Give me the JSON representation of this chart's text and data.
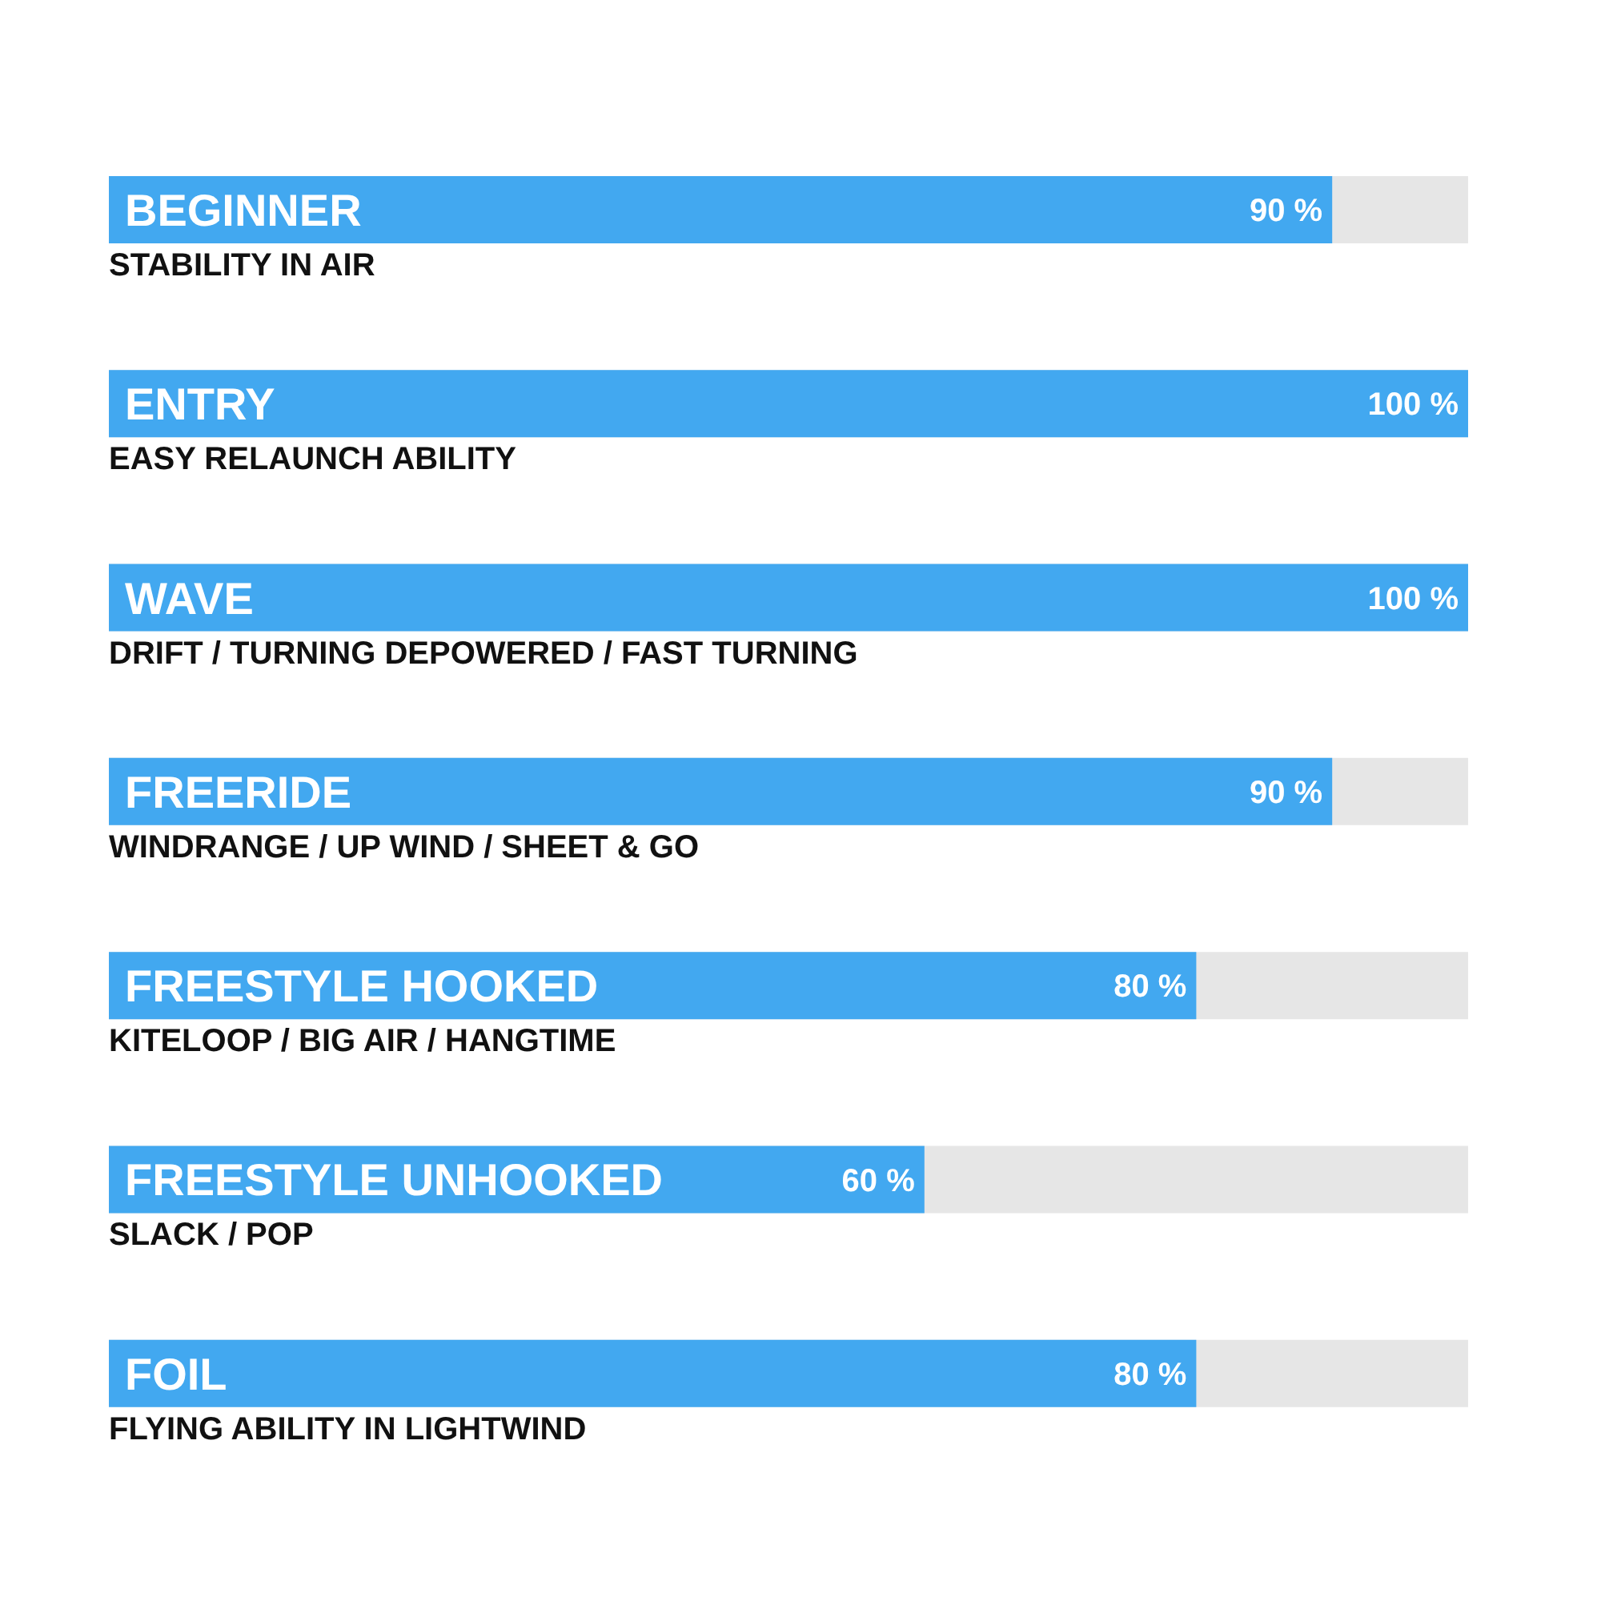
{
  "chart_data": {
    "type": "bar",
    "orientation": "horizontal",
    "categories": [
      "BEGINNER",
      "ENTRY",
      "WAVE",
      "FREERIDE",
      "FREESTYLE HOOKED",
      "FREESTYLE UNHOOKED",
      "FOIL"
    ],
    "values": [
      90,
      100,
      100,
      90,
      80,
      60,
      80
    ],
    "value_labels": [
      "90 %",
      "100 %",
      "100 %",
      "90 %",
      "80 %",
      "60 %",
      "80 %"
    ],
    "color": "#42a8f0",
    "xlim": [
      0,
      100
    ],
    "tick_labels": "y",
    "annotations": [
      "STABILITY IN AIR",
      "EASY RELAUNCH ABILITY",
      "DRIFT / TURNING DEPOWERED / FAST TURNING",
      "WINDRANGE / UP WIND / SHEET & GO",
      "KITELOOP / BIG AIR / HANGTIME",
      "SLACK / POP",
      "FLYING ABILITY IN LIGHTWIND"
    ],
    "grid": false,
    "legend": false
  }
}
